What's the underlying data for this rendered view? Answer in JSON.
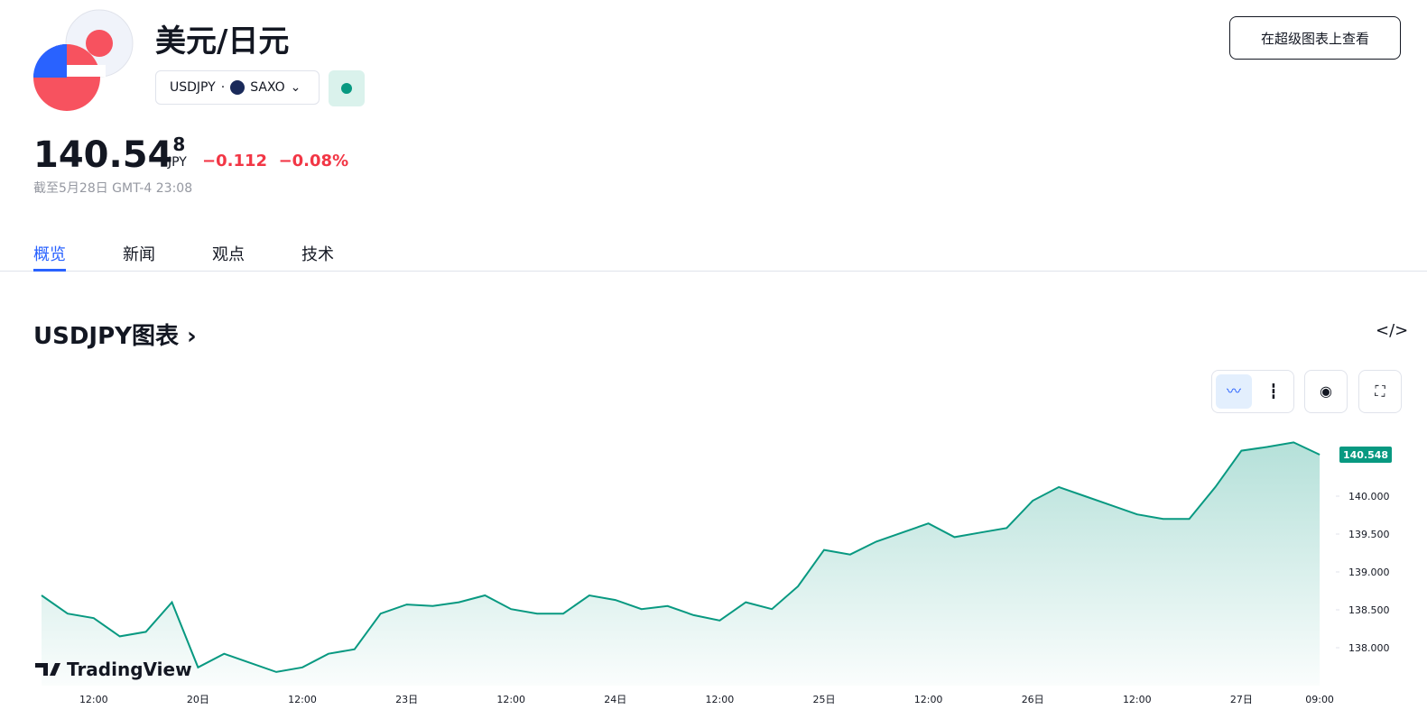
{
  "header": {
    "title": "美元/日元",
    "symbol": "USDJPY",
    "exchange": "SAXO",
    "button": "在超级图表上查看"
  },
  "quote": {
    "price": "140.54",
    "price_small": "8",
    "currency": "JPY",
    "change": "−0.112",
    "change_pct": "−0.08%",
    "time": "截至5月28日 GMT-4 23:08"
  },
  "tabs": [
    "概览",
    "新闻",
    "观点",
    "技术"
  ],
  "chart_data": {
    "type": "line",
    "title": "USDJPY图表",
    "watermark": "TradingView",
    "color": "#089981",
    "categories": [
      null,
      null,
      "12:00",
      null,
      null,
      null,
      "20日",
      null,
      null,
      null,
      "12:00",
      null,
      null,
      null,
      "23日",
      null,
      null,
      null,
      "12:00",
      null,
      null,
      null,
      "24日",
      null,
      null,
      null,
      "12:00",
      null,
      null,
      null,
      "25日",
      null,
      null,
      null,
      "12:00",
      null,
      null,
      null,
      "26日",
      null,
      null,
      null,
      "12:00",
      null,
      null,
      null,
      "27日",
      null,
      null,
      "09:00"
    ],
    "values": [
      138.69,
      138.45,
      138.39,
      138.15,
      138.21,
      138.6,
      137.74,
      137.92,
      137.8,
      137.68,
      137.74,
      137.92,
      137.98,
      138.45,
      138.57,
      138.55,
      138.6,
      138.69,
      138.51,
      138.45,
      138.45,
      138.69,
      138.63,
      138.51,
      138.55,
      138.43,
      138.36,
      138.6,
      138.51,
      138.81,
      139.29,
      139.23,
      139.4,
      139.52,
      139.64,
      139.46,
      139.52,
      139.58,
      139.94,
      140.12,
      140.0,
      139.88,
      139.76,
      139.7,
      139.7,
      140.12,
      140.6,
      140.65,
      140.71,
      140.548
    ],
    "ylim": [
      137.5,
      141.1
    ],
    "yticks": [
      {
        "value": 138,
        "label": "138.000"
      },
      {
        "value": 138.5,
        "label": "138.500"
      },
      {
        "value": 139,
        "label": "139.000"
      },
      {
        "value": 139.5,
        "label": "139.500"
      },
      {
        "value": 140,
        "label": "140.000"
      }
    ]
  }
}
